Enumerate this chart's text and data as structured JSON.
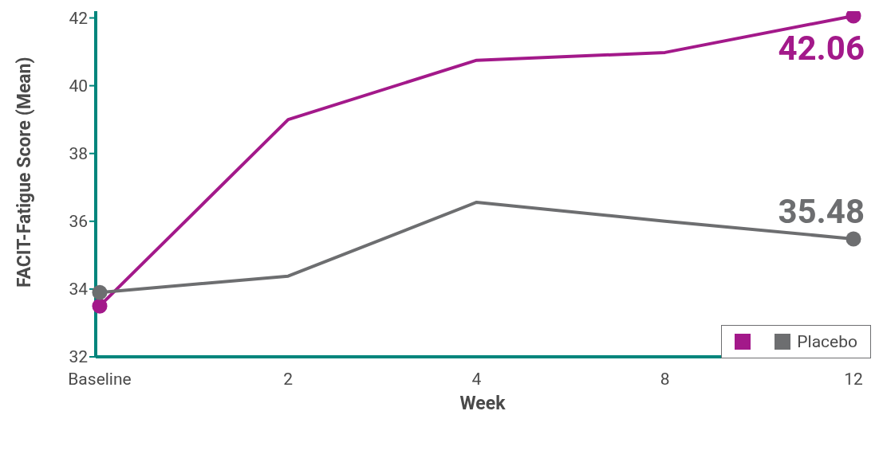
{
  "chart_data": {
    "type": "line",
    "xlabel": "Week",
    "ylabel": "FACIT-Fatigue Score (Mean)",
    "categories": [
      "Baseline",
      "2",
      "4",
      "8",
      "12"
    ],
    "series": [
      {
        "color": "#a3198a",
        "values": [
          33.5,
          39.0,
          40.75,
          40.98,
          42.06
        ],
        "value_labels": [
          null,
          null,
          null,
          null,
          "42.06"
        ]
      },
      {
        "name": "Placebo",
        "color": "#6d6e70",
        "values": [
          33.9,
          34.38,
          36.56,
          36.0,
          35.48
        ],
        "value_labels": [
          null,
          null,
          null,
          null,
          "35.48"
        ]
      }
    ],
    "ylim": [
      32,
      42.2
    ],
    "yticks": [
      32,
      34,
      36,
      38,
      40,
      42
    ],
    "grid": false,
    "legend": "bottom right",
    "line_style": "solid"
  }
}
